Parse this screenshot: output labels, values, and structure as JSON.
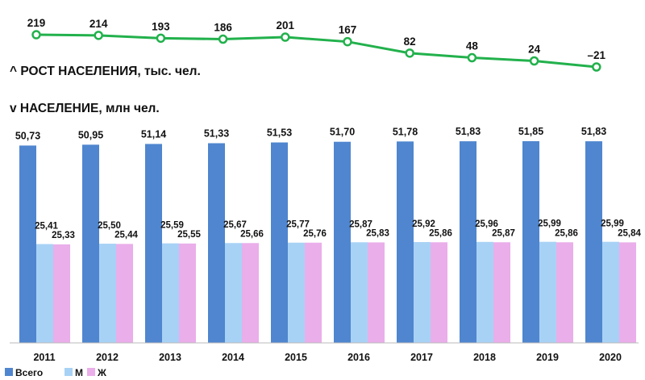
{
  "chart_data": [
    {
      "type": "line",
      "title": "^ РОСТ НАСЕЛЕНИЯ, тыс. чел.",
      "x": [
        "2011",
        "2012",
        "2013",
        "2014",
        "2015",
        "2016",
        "2017",
        "2018",
        "2019",
        "2020"
      ],
      "values": [
        219,
        214,
        193,
        186,
        201,
        167,
        82,
        48,
        24,
        -21
      ],
      "value_labels": [
        "219",
        "214",
        "193",
        "186",
        "201",
        "167",
        "82",
        "48",
        "24",
        "–21"
      ],
      "color": "#22b14c"
    },
    {
      "type": "bar",
      "title": "v НАСЕЛЕНИЕ, млн чел.",
      "categories": [
        "2011",
        "2012",
        "2013",
        "2014",
        "2015",
        "2016",
        "2017",
        "2018",
        "2019",
        "2020"
      ],
      "series": [
        {
          "name": "Всего",
          "color": "#4f86cf",
          "values": [
            50.73,
            50.95,
            51.14,
            51.33,
            51.53,
            51.7,
            51.78,
            51.83,
            51.85,
            51.83
          ],
          "labels": [
            "50,73",
            "50,95",
            "51,14",
            "51,33",
            "51,53",
            "51,70",
            "51,78",
            "51,83",
            "51,85",
            "51,83"
          ]
        },
        {
          "name": "М",
          "color": "#a8d2f5",
          "values": [
            25.41,
            25.5,
            25.59,
            25.67,
            25.77,
            25.87,
            25.92,
            25.96,
            25.99,
            25.99
          ],
          "labels": [
            "25,41",
            "25,50",
            "25,59",
            "25,67",
            "25,77",
            "25,87",
            "25,92",
            "25,96",
            "25,99",
            "25,99"
          ]
        },
        {
          "name": "Ж",
          "color": "#eaaeea",
          "values": [
            25.33,
            25.44,
            25.55,
            25.66,
            25.76,
            25.83,
            25.86,
            25.87,
            25.86,
            25.84
          ],
          "labels": [
            "25,33",
            "25,44",
            "25,55",
            "25,66",
            "25,76",
            "25,83",
            "25,86",
            "25,87",
            "25,86",
            "25,84"
          ]
        }
      ],
      "ylim": [
        0,
        51.85
      ],
      "grid": false,
      "legend_position": "bottom-left"
    }
  ]
}
